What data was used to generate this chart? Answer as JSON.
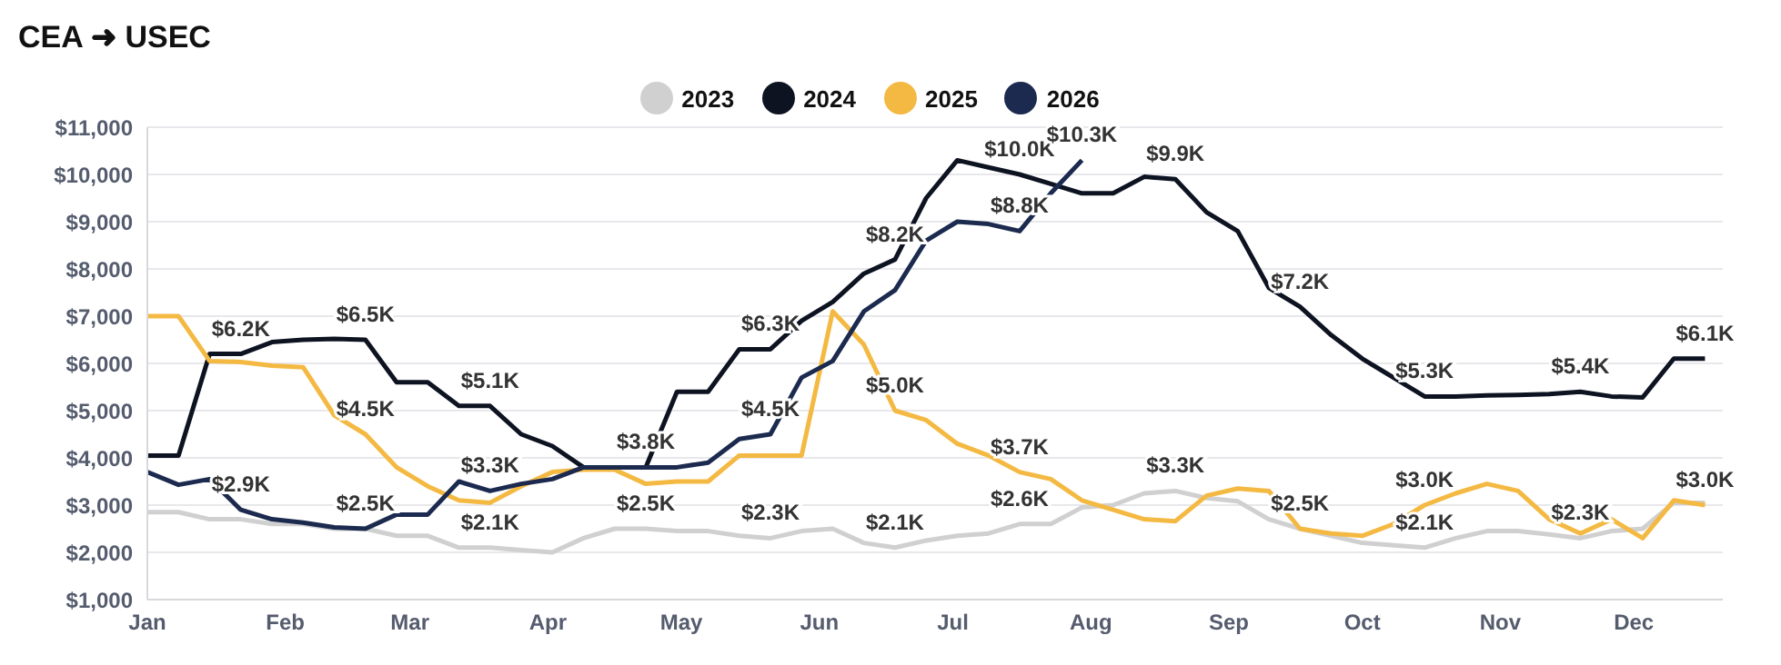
{
  "chart_data": {
    "type": "line",
    "title": "CEA ➜ USEC",
    "x": [
      "--01-01",
      "--01-08",
      "--01-15",
      "--01-22",
      "--01-29",
      "--02-05",
      "--02-12",
      "--02-19",
      "--02-26",
      "--03-05",
      "--03-12",
      "--03-19",
      "--03-26",
      "--04-02",
      "--04-09",
      "--04-16",
      "--04-23",
      "--04-30",
      "--05-07",
      "--05-14",
      "--05-21",
      "--05-28",
      "--06-04",
      "--06-11",
      "--06-18",
      "--06-25",
      "--07-02",
      "--07-09",
      "--07-16",
      "--07-23",
      "--07-30",
      "--08-06",
      "--08-13",
      "--08-20",
      "--08-27",
      "--09-03",
      "--09-10",
      "--09-17",
      "--09-24",
      "--10-01",
      "--10-08",
      "--10-15",
      "--10-22",
      "--10-29",
      "--11-05",
      "--11-12",
      "--11-19",
      "--11-26",
      "--12-03",
      "--12-10",
      "--12-17"
    ],
    "series": [
      {
        "name": "2023",
        "color": "#d0d0d0",
        "values": [
          2850,
          2850,
          2700,
          2700,
          2600,
          2600,
          2500,
          2500,
          2350,
          2350,
          2100,
          2100,
          2050,
          2000,
          2300,
          2500,
          2500,
          2450,
          2450,
          2350,
          2300,
          2450,
          2500,
          2200,
          2100,
          2250,
          2350,
          2400,
          2600,
          2600,
          2950,
          3000,
          3250,
          3300,
          3150,
          3080,
          2700,
          2500,
          2350,
          2200,
          2150,
          2100,
          2300,
          2450,
          2450,
          2380,
          2300,
          2450,
          2500,
          3050,
          3050
        ]
      },
      {
        "name": "2024",
        "color": "#0d1321",
        "values": [
          4050,
          4050,
          6200,
          6200,
          6450,
          6500,
          6520,
          6500,
          5600,
          5600,
          5100,
          5100,
          4500,
          4250,
          3800,
          3800,
          3800,
          5400,
          5400,
          6300,
          6300,
          6900,
          7300,
          7900,
          8200,
          9500,
          10300,
          10150,
          10000,
          9800,
          9600,
          9600,
          9950,
          9900,
          9200,
          8800,
          7600,
          7200,
          6600,
          6100,
          5700,
          5300,
          5300,
          5320,
          5330,
          5350,
          5400,
          5300,
          5280,
          6100,
          6100
        ]
      },
      {
        "name": "2025",
        "color": "#f4b942",
        "values": [
          7000,
          7000,
          6050,
          6030,
          5950,
          5920,
          4900,
          4500,
          3800,
          3400,
          3100,
          3050,
          3400,
          3700,
          3750,
          3750,
          3450,
          3500,
          3500,
          4050,
          4050,
          4050,
          7100,
          6400,
          5000,
          4800,
          4300,
          4050,
          3700,
          3550,
          3100,
          2900,
          2700,
          2660,
          3200,
          3350,
          3300,
          2500,
          2400,
          2350,
          2600,
          3000,
          3250,
          3450,
          3300,
          2700,
          2400,
          2700,
          2300,
          3100,
          3000
        ]
      },
      {
        "name": "2026",
        "color": "#1b2a4e",
        "values": [
          3700,
          3430,
          3550,
          2900,
          2700,
          2630,
          2530,
          2500,
          2800,
          2800,
          3500,
          3300,
          3450,
          3550,
          3800,
          3800,
          3800,
          3800,
          3900,
          4400,
          4500,
          5700,
          6050,
          7100,
          7550,
          8600,
          9000,
          8950,
          8800,
          9600,
          10300,
          null,
          null,
          null,
          null,
          null,
          null,
          null,
          null,
          null,
          null,
          null,
          null,
          null,
          null,
          null,
          null,
          null,
          null,
          null,
          null
        ]
      }
    ],
    "xlim": [
      "--01-01",
      "--12-21"
    ],
    "xticks": [
      {
        "value": "--01-01",
        "label": "Jan"
      },
      {
        "value": "--02-01",
        "label": "Feb"
      },
      {
        "value": "--03-01",
        "label": "Mar"
      },
      {
        "value": "--04-01",
        "label": "Apr"
      },
      {
        "value": "--05-01",
        "label": "May"
      },
      {
        "value": "--06-01",
        "label": "Jun"
      },
      {
        "value": "--07-01",
        "label": "Jul"
      },
      {
        "value": "--08-01",
        "label": "Aug"
      },
      {
        "value": "--09-01",
        "label": "Sep"
      },
      {
        "value": "--10-01",
        "label": "Oct"
      },
      {
        "value": "--11-01",
        "label": "Nov"
      },
      {
        "value": "--12-01",
        "label": "Dec"
      }
    ],
    "ylim": [
      1000,
      11000
    ],
    "yticks": [
      {
        "value": 1000,
        "label": "$1,000"
      },
      {
        "value": 2000,
        "label": "$2,000"
      },
      {
        "value": 3000,
        "label": "$3,000"
      },
      {
        "value": 4000,
        "label": "$4,000"
      },
      {
        "value": 5000,
        "label": "$5,000"
      },
      {
        "value": 6000,
        "label": "$6,000"
      },
      {
        "value": 7000,
        "label": "$7,000"
      },
      {
        "value": 8000,
        "label": "$8,000"
      },
      {
        "value": 9000,
        "label": "$9,000"
      },
      {
        "value": 10000,
        "label": "$10,000"
      },
      {
        "value": 11000,
        "label": "$11,000"
      }
    ],
    "grid": "y",
    "legend": "top",
    "marker": "none",
    "line_style": "solid",
    "annotations": [
      {
        "text": "$6.2K",
        "x": "--01-22",
        "y": 6200
      },
      {
        "text": "$2.9K",
        "x": "--01-22",
        "y": 2900
      },
      {
        "text": "$6.5K",
        "x": "--02-19",
        "y": 6500
      },
      {
        "text": "$4.5K",
        "x": "--02-19",
        "y": 4500
      },
      {
        "text": "$2.5K",
        "x": "--02-19",
        "y": 2500
      },
      {
        "text": "$5.1K",
        "x": "--03-19",
        "y": 5100
      },
      {
        "text": "$3.3K",
        "x": "--03-19",
        "y": 3300
      },
      {
        "text": "$2.1K",
        "x": "--03-19",
        "y": 2100
      },
      {
        "text": "$3.8K",
        "x": "--04-23",
        "y": 3800
      },
      {
        "text": "$2.5K",
        "x": "--04-23",
        "y": 2500
      },
      {
        "text": "$6.3K",
        "x": "--05-21",
        "y": 6300
      },
      {
        "text": "$4.5K",
        "x": "--05-21",
        "y": 4500
      },
      {
        "text": "$2.3K",
        "x": "--05-21",
        "y": 2300
      },
      {
        "text": "$8.2K",
        "x": "--06-18",
        "y": 8200
      },
      {
        "text": "$5.0K",
        "x": "--06-18",
        "y": 5000
      },
      {
        "text": "$2.1K",
        "x": "--06-18",
        "y": 2100
      },
      {
        "text": "$10.0K",
        "x": "--07-16",
        "y": 10000
      },
      {
        "text": "$8.8K",
        "x": "--07-16",
        "y": 8800
      },
      {
        "text": "$3.7K",
        "x": "--07-16",
        "y": 3700
      },
      {
        "text": "$2.6K",
        "x": "--07-16",
        "y": 2600
      },
      {
        "text": "$10.3K",
        "x": "--07-30",
        "y": 10300
      },
      {
        "text": "$9.9K",
        "x": "--08-20",
        "y": 9900
      },
      {
        "text": "$3.3K",
        "x": "--08-20",
        "y": 3300
      },
      {
        "text": "$7.2K",
        "x": "--09-17",
        "y": 7200
      },
      {
        "text": "$2.5K",
        "x": "--09-17",
        "y": 2500
      },
      {
        "text": "$5.3K",
        "x": "--10-15",
        "y": 5300
      },
      {
        "text": "$3.0K",
        "x": "--10-15",
        "y": 3000
      },
      {
        "text": "$2.1K",
        "x": "--10-15",
        "y": 2100
      },
      {
        "text": "$5.4K",
        "x": "--11-19",
        "y": 5400
      },
      {
        "text": "$2.3K",
        "x": "--11-19",
        "y": 2300
      },
      {
        "text": "$6.1K",
        "x": "--12-17",
        "y": 6100
      },
      {
        "text": "$3.0K",
        "x": "--12-17",
        "y": 3000
      }
    ]
  }
}
